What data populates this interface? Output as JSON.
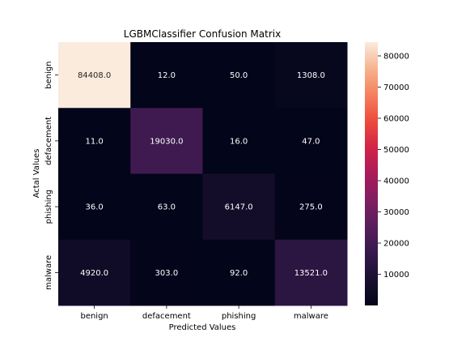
{
  "chart_data": {
    "type": "heatmap",
    "title": "LGBMClassifier Confusion Matrix",
    "xlabel": "Predicted Values",
    "ylabel": "Actal Values",
    "x_categories": [
      "benign",
      "defacement",
      "phishing",
      "malware"
    ],
    "y_categories": [
      "benign",
      "defacement",
      "phishing",
      "malware"
    ],
    "values": [
      [
        84408.0,
        12.0,
        50.0,
        1308.0
      ],
      [
        11.0,
        19030.0,
        16.0,
        47.0
      ],
      [
        36.0,
        63.0,
        6147.0,
        275.0
      ],
      [
        4920.0,
        303.0,
        92.0,
        13521.0
      ]
    ],
    "cell_labels": [
      [
        "84408.0",
        "12.0",
        "50.0",
        "1308.0"
      ],
      [
        "11.0",
        "19030.0",
        "16.0",
        "47.0"
      ],
      [
        "36.0",
        "63.0",
        "6147.0",
        "275.0"
      ],
      [
        "4920.0",
        "303.0",
        "92.0",
        "13521.0"
      ]
    ],
    "colorbar": {
      "min": 11.0,
      "max": 84408.0,
      "ticks": [
        10000,
        20000,
        30000,
        40000,
        50000,
        60000,
        70000,
        80000
      ],
      "tick_labels": [
        "10000",
        "20000",
        "30000",
        "40000",
        "50000",
        "60000",
        "70000",
        "80000"
      ]
    },
    "colormap": "rocket",
    "text_color_dark_cells": "#ffffff",
    "text_color_light_cells": "#262626"
  }
}
